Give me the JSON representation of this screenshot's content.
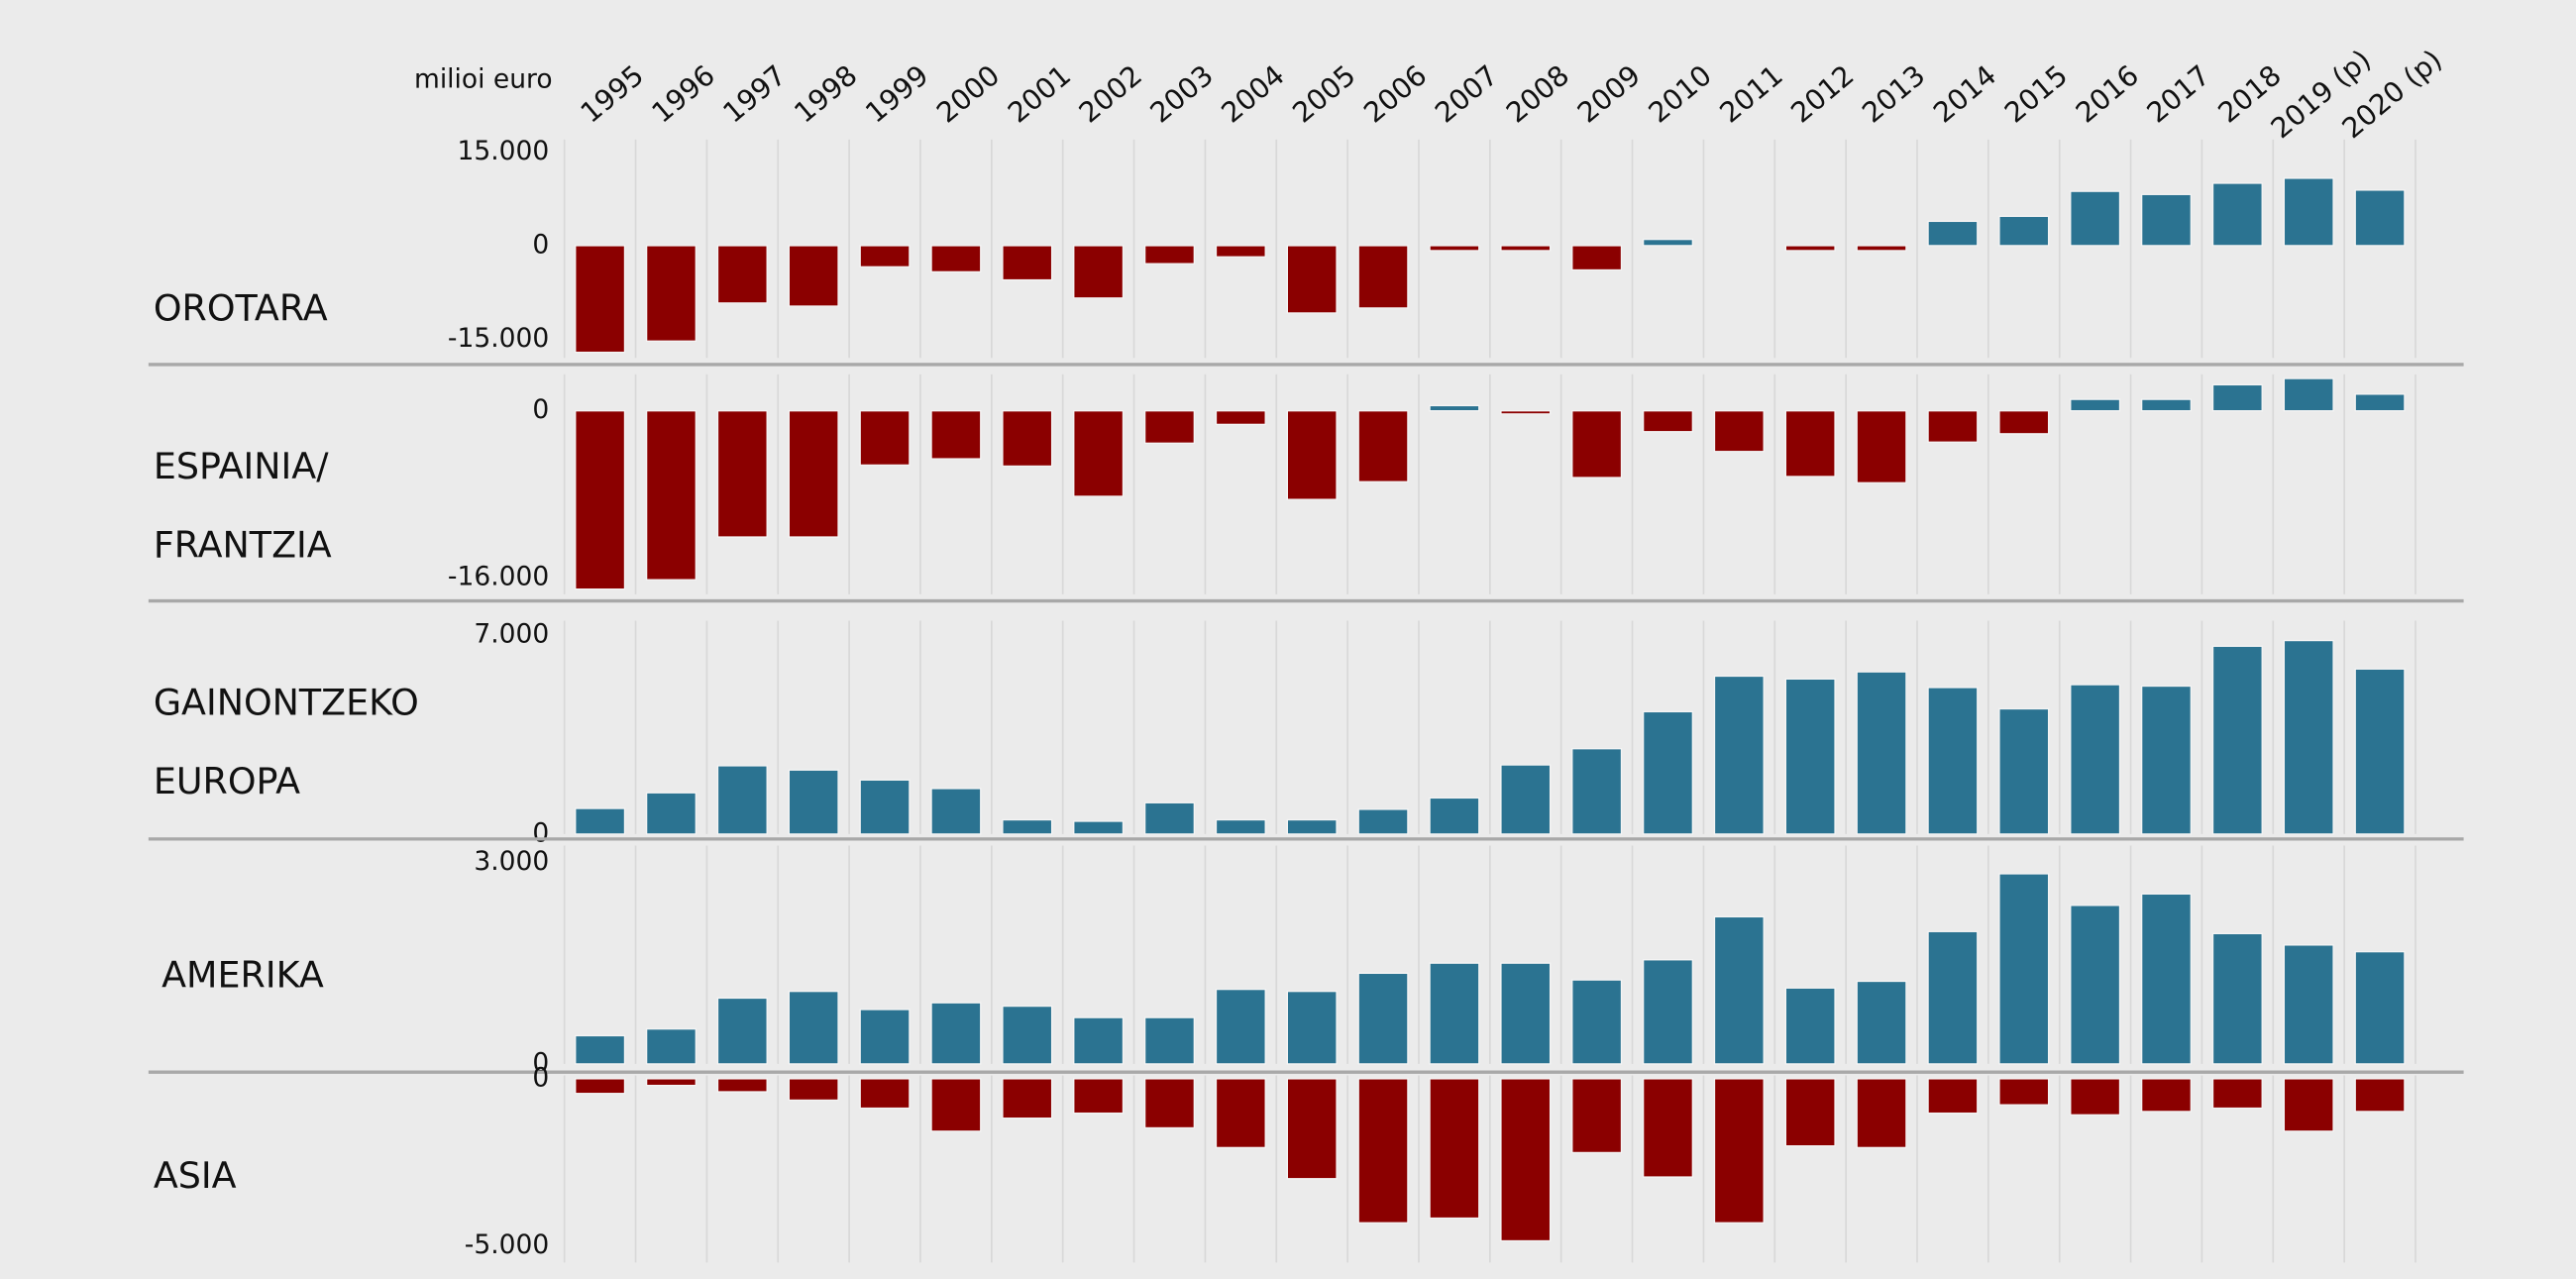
{
  "chart_data": {
    "type": "bar",
    "unit_label": "milioi euro",
    "categories": [
      "1995",
      "1996",
      "1997",
      "1998",
      "1999",
      "2000",
      "2001",
      "2002",
      "2003",
      "2004",
      "2005",
      "2006",
      "2007",
      "2008",
      "2009",
      "2010",
      "2011",
      "2012",
      "2013",
      "2014",
      "2015",
      "2016",
      "2017",
      "2018",
      "2019 (p)",
      "2020 (p)"
    ],
    "positive_color": "#2b7391",
    "negative_color": "#8b0000",
    "negative_tick_color": "#e8000b",
    "panels": [
      {
        "title": [
          "OROTARA"
        ],
        "values": [
          -17100,
          -15300,
          -9200,
          -9700,
          -3400,
          -4200,
          -5500,
          -8400,
          -2900,
          -1800,
          -10800,
          -10000,
          -800,
          -800,
          -3900,
          1000,
          0,
          -800,
          -800,
          3900,
          4700,
          8700,
          8200,
          10000,
          10800,
          8900
        ],
        "ylim": [
          -18000,
          17000
        ],
        "yticks": [
          {
            "value": 15000,
            "label": "15.000"
          },
          0,
          {
            "value": -15000,
            "label": "-15.000"
          }
        ]
      },
      {
        "title": [
          "ESPAINIA/",
          "FRANTZIA"
        ],
        "values": [
          -17100,
          -16200,
          -12100,
          -12100,
          -5200,
          -4600,
          -5300,
          -8200,
          -3100,
          -1300,
          -8500,
          -6800,
          500,
          -300,
          -6400,
          -2000,
          -3900,
          -6300,
          -6900,
          -3000,
          -2200,
          1100,
          1100,
          2500,
          3100,
          1600
        ],
        "ylim": [
          -17600,
          3500
        ],
        "yticks": [
          0,
          {
            "value": -16000,
            "label": "-16.000"
          }
        ]
      },
      {
        "title": [
          "GAINONTZEKO",
          "EUROPA"
        ],
        "values": [
          900,
          1450,
          2400,
          2250,
          1900,
          1600,
          500,
          450,
          1100,
          500,
          500,
          870,
          1270,
          2430,
          3000,
          4300,
          5550,
          5450,
          5700,
          5150,
          4400,
          5250,
          5200,
          6600,
          6800,
          5800
        ],
        "ylim": [
          0,
          7500
        ],
        "yticks": [
          {
            "value": 7000,
            "label": "7.000"
          },
          0
        ]
      },
      {
        "title": [
          "AMERIKA"
        ],
        "values": [
          420,
          520,
          980,
          1080,
          810,
          910,
          860,
          690,
          690,
          1110,
          1080,
          1350,
          1500,
          1500,
          1250,
          1550,
          2190,
          1130,
          1230,
          1970,
          2830,
          2360,
          2530,
          1940,
          1770,
          1670
        ],
        "ylim": [
          0,
          3250
        ],
        "yticks": [
          {
            "value": 3000,
            "label": "3.000"
          },
          0
        ]
      },
      {
        "title": [
          "ASIA"
        ],
        "values": [
          -440,
          -200,
          -390,
          -640,
          -880,
          -1570,
          -1180,
          -1030,
          -1470,
          -2060,
          -2990,
          -4310,
          -4170,
          -4850,
          -2210,
          -2940,
          -4310,
          -2010,
          -2060,
          -1030,
          -780,
          -1080,
          -980,
          -880,
          -1570,
          -980
        ],
        "ylim": [
          -5500,
          100
        ],
        "yticks": [
          0,
          {
            "value": -5000,
            "label": "-5.000"
          }
        ]
      }
    ]
  }
}
